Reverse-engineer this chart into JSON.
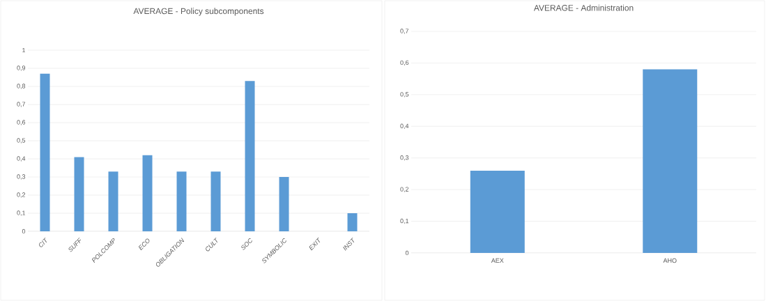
{
  "chart_data": [
    {
      "type": "bar",
      "title": "AVERAGE - Policy subcomponents",
      "categories": [
        "CIT",
        "SUFF",
        "POLCOMP",
        "ECO",
        "OBLIGATION",
        "CULT",
        "SOC",
        "SYMBOLIC",
        "EXIT",
        "INST"
      ],
      "values": [
        0.87,
        0.41,
        0.33,
        0.42,
        0.33,
        0.33,
        0.83,
        0.3,
        0,
        0.1
      ],
      "color": "#5b9bd5",
      "ylim": [
        0,
        1
      ],
      "yticks": [
        0,
        {
          "value": 0.1,
          "label": "0,1"
        },
        {
          "value": 0.2,
          "label": "0,2"
        },
        {
          "value": 0.3,
          "label": "0,3"
        },
        {
          "value": 0.4,
          "label": "0,4"
        },
        {
          "value": 0.5,
          "label": "0,5"
        },
        {
          "value": 0.6,
          "label": "0,6"
        },
        {
          "value": 0.7,
          "label": "0,7"
        },
        {
          "value": 0.8,
          "label": "0,8"
        },
        {
          "value": 0.9,
          "label": "0,9"
        },
        1
      ],
      "grid": "y"
    },
    {
      "type": "bar",
      "title": "AVERAGE - Administration",
      "categories": [
        "AEX",
        "AHO"
      ],
      "values": [
        0.26,
        0.58
      ],
      "color": "#5b9bd5",
      "ylim": [
        0,
        0.7
      ],
      "yticks": [
        0,
        {
          "value": 0.1,
          "label": "0,1"
        },
        {
          "value": 0.2,
          "label": "0,2"
        },
        {
          "value": 0.3,
          "label": "0,3"
        },
        {
          "value": 0.4,
          "label": "0,4"
        },
        {
          "value": 0.5,
          "label": "0,5"
        },
        {
          "value": 0.6,
          "label": "0,6"
        },
        {
          "value": 0.7,
          "label": "0,7"
        }
      ],
      "grid": "y"
    }
  ]
}
